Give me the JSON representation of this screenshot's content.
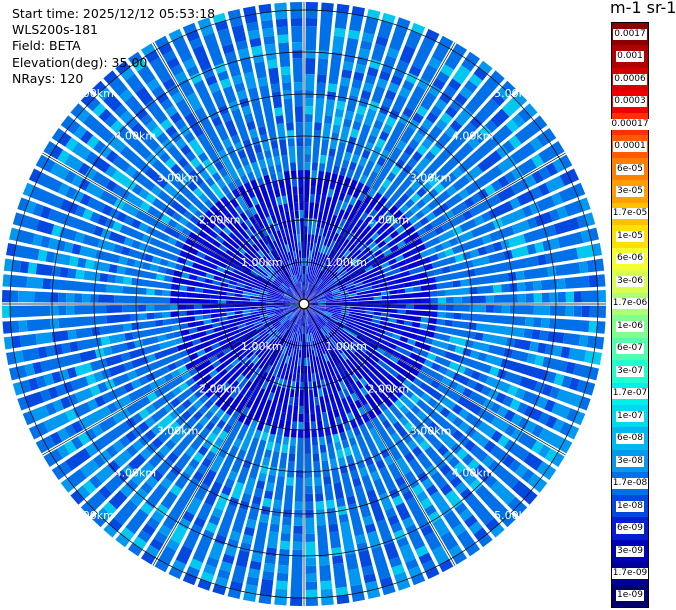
{
  "header": {
    "start_time": "Start time: 2025/12/12 05:53:18",
    "instrument": "WLS200s-181",
    "field": "Field: BETA",
    "elevation": "Elevation(deg): 35.00",
    "nrays": "NRays: 120"
  },
  "colorbar": {
    "unit_label": "m-1 sr-1",
    "ticks": [
      "0.0017",
      "0.001",
      "0.0006",
      "0.0003",
      "0.00017",
      "0.0001",
      "6e-05",
      "3e-05",
      "1.7e-05",
      "1e-05",
      "6e-06",
      "3e-06",
      "1.7e-06",
      "1e-06",
      "6e-07",
      "3e-07",
      "1.7e-07",
      "1e-07",
      "6e-08",
      "3e-08",
      "1.7e-08",
      "1e-08",
      "6e-09",
      "3e-09",
      "1.7e-09",
      "1e-09"
    ],
    "colors": [
      "#8b0000",
      "#b00000",
      "#d40000",
      "#f00000",
      "#ff3000",
      "#ff5a00",
      "#ff8000",
      "#ff9f00",
      "#ffc000",
      "#ffe000",
      "#f4ff30",
      "#d8ff50",
      "#b0ff70",
      "#80ff90",
      "#50ffb0",
      "#20ffd0",
      "#00f0e8",
      "#00d8f0",
      "#00b8f0",
      "#0098f0",
      "#0070e8",
      "#0048e0",
      "#0020d0",
      "#0000b8",
      "#000098",
      "#000070"
    ]
  },
  "range_rings": {
    "labels": [
      "1.00km",
      "2.00km",
      "3.00km",
      "4.00km",
      "5.00km"
    ]
  }
}
